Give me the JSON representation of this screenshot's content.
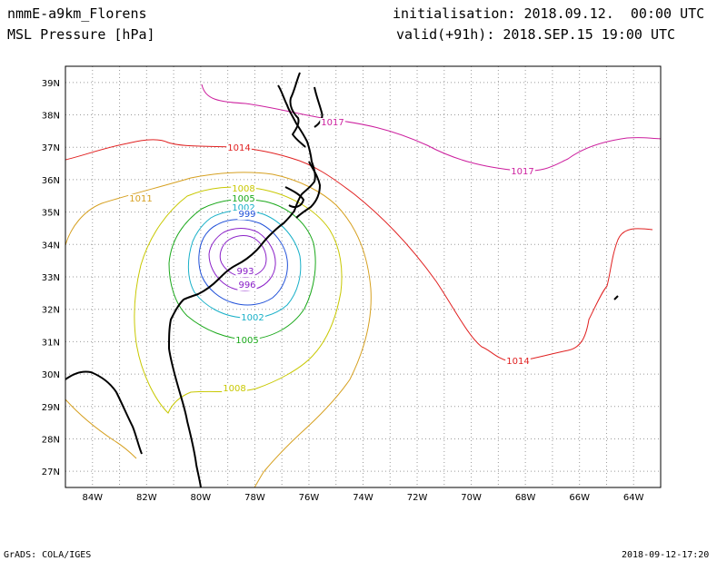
{
  "header": {
    "model": "nmmE-a9km_Florens",
    "field": "MSL Pressure [hPa]",
    "init": "initialisation: 2018.09.12.  00:00 UTC",
    "valid": "valid(+91h): 2018.SEP.15 19:00 UTC"
  },
  "footer": {
    "left": "GrADS: COLA/IGES",
    "right": "2018-09-12-17:20"
  },
  "axes": {
    "lon_labels": [
      "84W",
      "82W",
      "80W",
      "78W",
      "76W",
      "74W",
      "72W",
      "70W",
      "68W",
      "66W",
      "64W"
    ],
    "lat_labels": [
      "39N",
      "38N",
      "37N",
      "36N",
      "35N",
      "34N",
      "33N",
      "32N",
      "31N",
      "30N",
      "29N",
      "28N",
      "27N"
    ],
    "lon_range": [
      -85,
      -63
    ],
    "lat_range": [
      26.5,
      39.5
    ],
    "grid": "dotted"
  },
  "contour_labels": [
    {
      "text": "1017",
      "color": "#cc1f9e"
    },
    {
      "text": "1017",
      "color": "#cc1f9e"
    },
    {
      "text": "1014",
      "color": "#e02020"
    },
    {
      "text": "1014",
      "color": "#e02020"
    },
    {
      "text": "1011",
      "color": "#d6a020"
    },
    {
      "text": "1008",
      "color": "#c8c800"
    },
    {
      "text": "1008",
      "color": "#c8c800"
    },
    {
      "text": "1005",
      "color": "#1aa81a"
    },
    {
      "text": "1005",
      "color": "#1aa81a"
    },
    {
      "text": "1002",
      "color": "#18b0c8"
    },
    {
      "text": "1002",
      "color": "#18b0c8"
    },
    {
      "text": "999",
      "color": "#2050d8"
    },
    {
      "text": "996",
      "color": "#8a20c8"
    },
    {
      "text": "993",
      "color": "#8a20c8"
    }
  ],
  "colors": {
    "c1017": "#cc1f9e",
    "c1014": "#e02020",
    "c1011": "#d6a020",
    "c1008": "#c8c800",
    "c1005": "#1aa81a",
    "c1002": "#18b0c8",
    "c999": "#2050d8",
    "c996": "#8a20c8",
    "coast": "#000000"
  }
}
